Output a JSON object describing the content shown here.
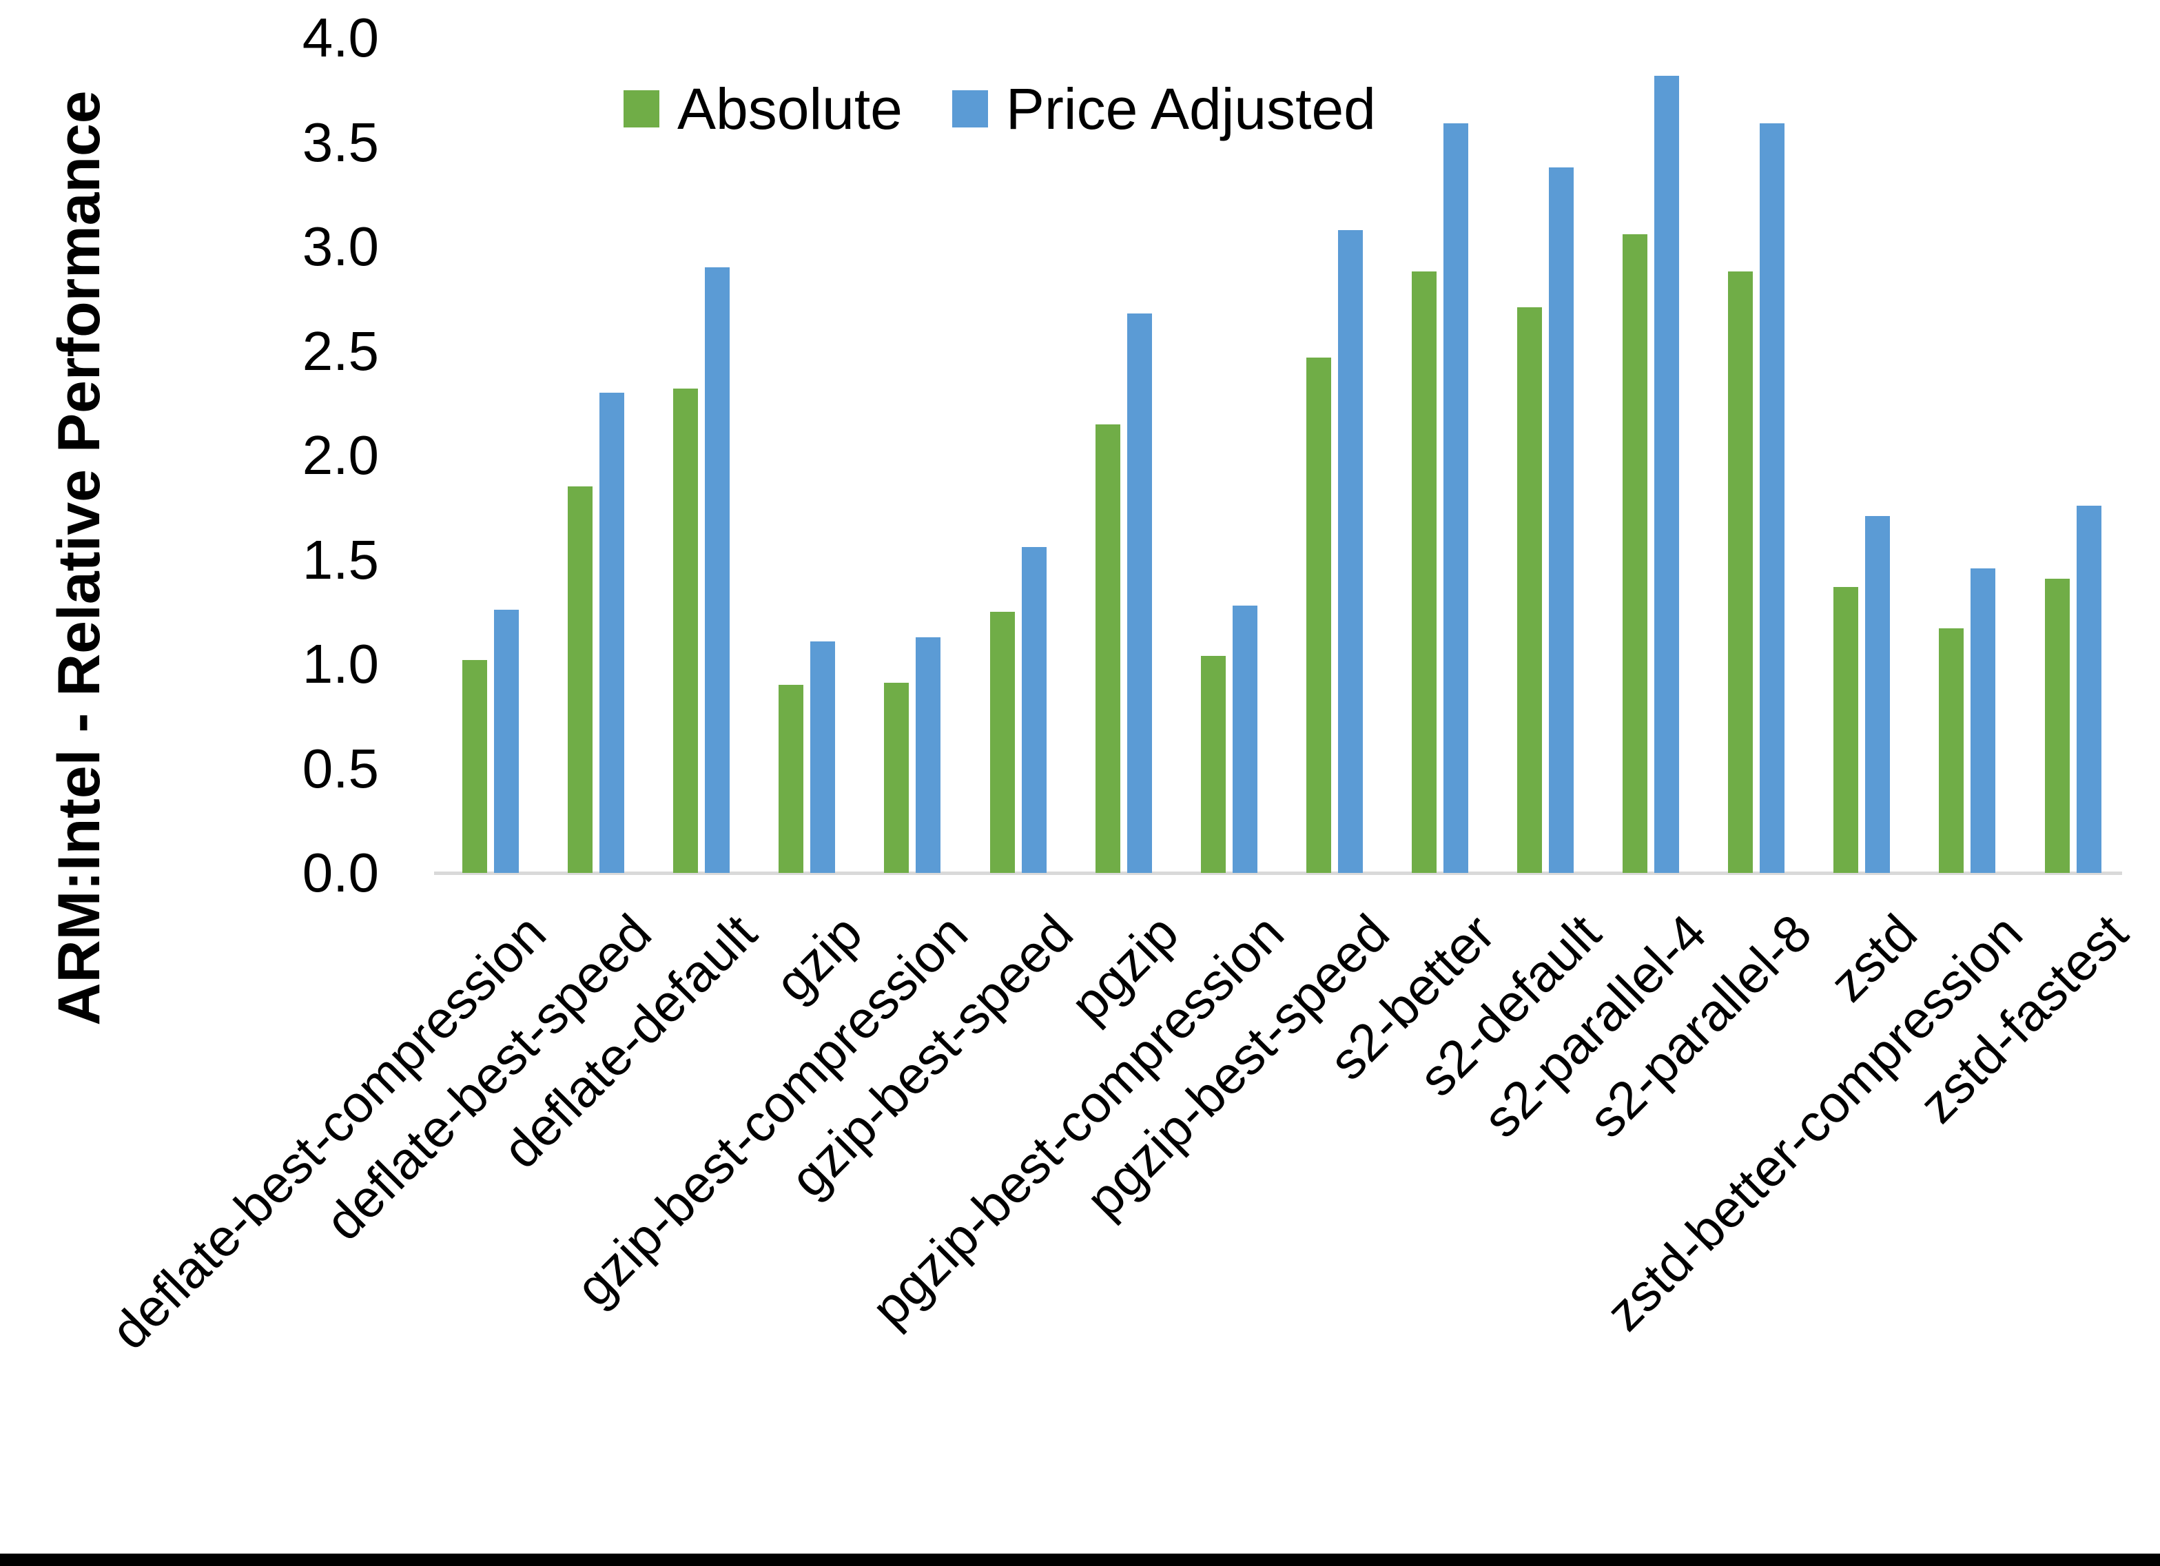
{
  "colors": {
    "absolute_series": "#70AD47",
    "price_adjusted_series": "#5B9BD5",
    "axis_line": "#D9D9D9",
    "text": "#000000",
    "bottom_border": "#000000"
  },
  "chart_data": {
    "type": "bar",
    "title": "",
    "xlabel": "",
    "ylabel": "ARM:Intel - Relative Performance",
    "ylim": [
      0.0,
      4.0
    ],
    "ytick_step": 0.5,
    "yticks": [
      "0.0",
      "0.5",
      "1.0",
      "1.5",
      "2.0",
      "2.5",
      "3.0",
      "3.5",
      "4.0"
    ],
    "grid": false,
    "legend_position": "top-center",
    "categories": [
      "deflate-best-compression",
      "deflate-best-speed",
      "deflate-default",
      "gzip",
      "gzip-best-compression",
      "gzip-best-speed",
      "pgzip",
      "pgzip-best-compression",
      "pgzip-best-speed",
      "s2-better",
      "s2-default",
      "s2-parallel-4",
      "s2-parallel-8",
      "zstd",
      "zstd-better-compression",
      "zstd-fastest"
    ],
    "series": [
      {
        "name": "Absolute",
        "color": "#70AD47",
        "values": [
          1.02,
          1.85,
          2.32,
          0.9,
          0.91,
          1.25,
          2.15,
          1.04,
          2.47,
          2.88,
          2.71,
          3.06,
          2.88,
          1.37,
          1.17,
          1.41
        ]
      },
      {
        "name": "Price Adjusted",
        "color": "#5B9BD5",
        "values": [
          1.26,
          2.3,
          2.9,
          1.11,
          1.13,
          1.56,
          2.68,
          1.28,
          3.08,
          3.59,
          3.38,
          3.82,
          3.59,
          1.71,
          1.46,
          1.76
        ]
      }
    ]
  }
}
